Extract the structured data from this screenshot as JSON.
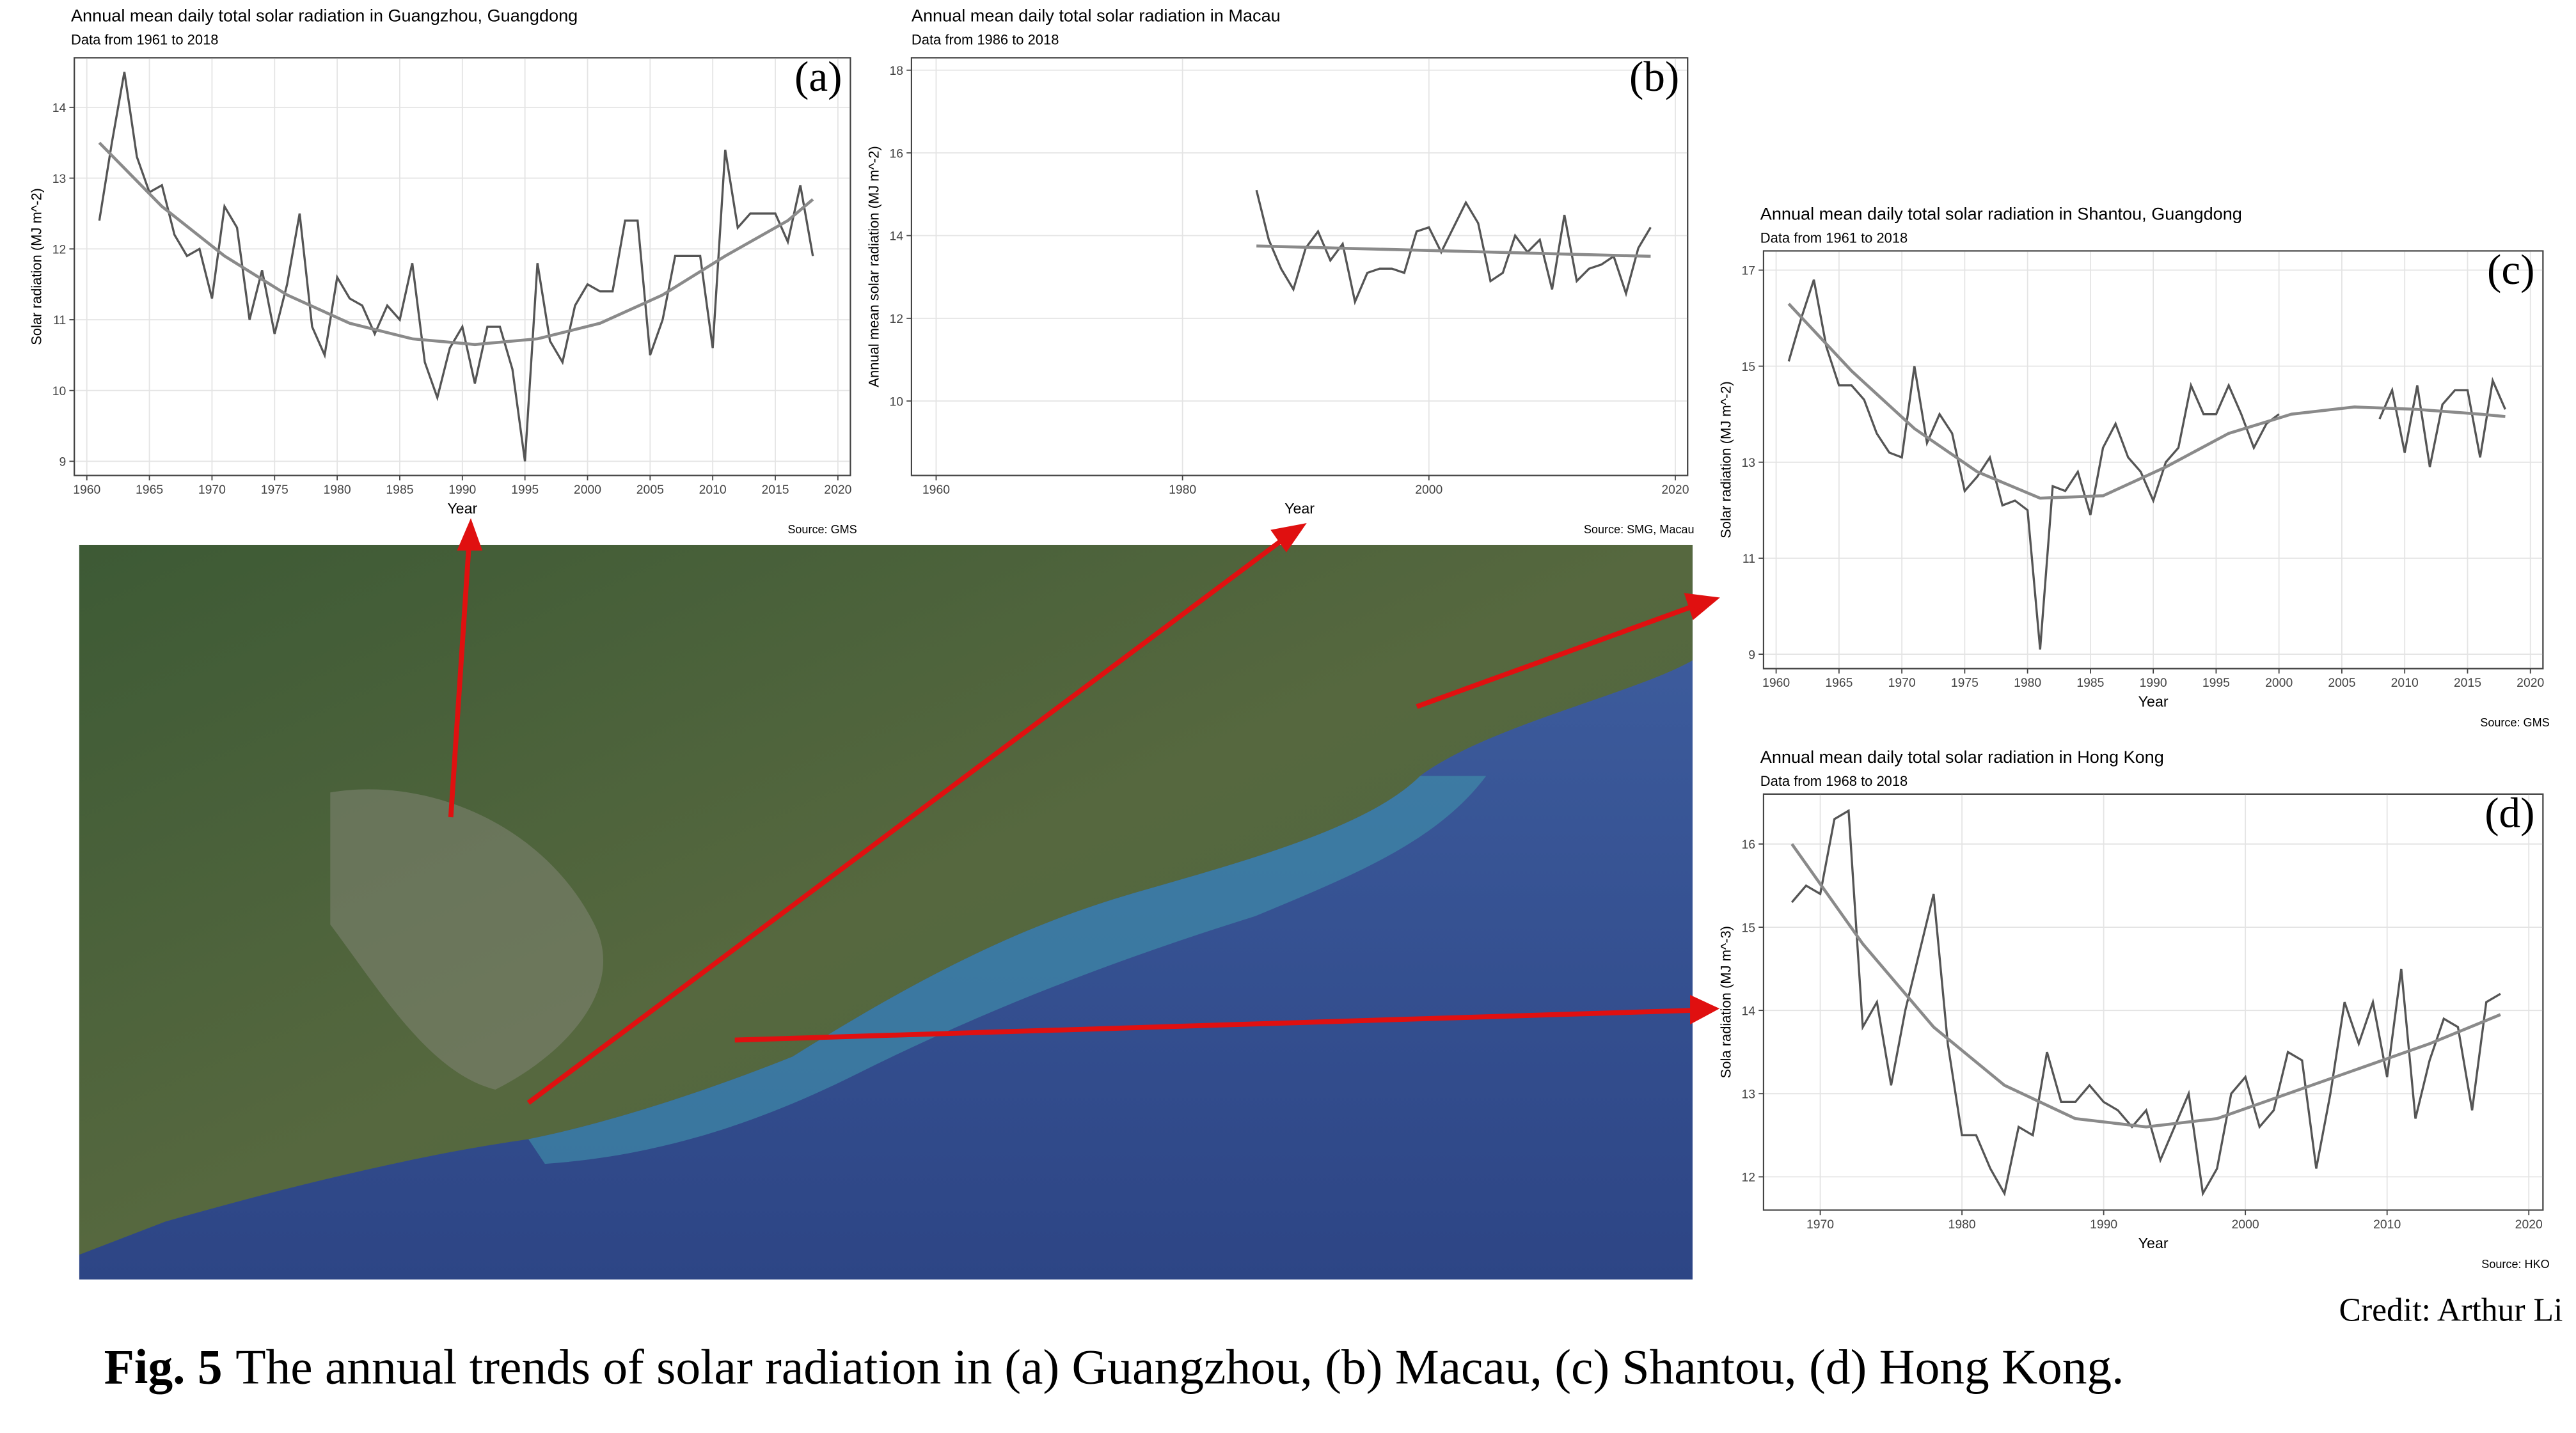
{
  "chart_data": [
    {
      "type": "line",
      "title": "Annual mean daily total solar radiation in Guangzhou, Guangdong",
      "subtitle": "Data from 1961 to 2018",
      "panel": "(a)",
      "xlabel": "Year",
      "ylabel": "Solar radiation (MJ m^-2)",
      "source": "Source: GMS",
      "xlim": [
        1959,
        2021
      ],
      "xticks": [
        1960,
        1965,
        1970,
        1975,
        1980,
        1985,
        1990,
        1995,
        2000,
        2005,
        2010,
        2015,
        2020
      ],
      "ylim": [
        8.8,
        14.7
      ],
      "yticks": [
        9,
        10,
        11,
        12,
        13,
        14
      ],
      "grid": true,
      "series": [
        {
          "color": "#555555",
          "x": [
            1961,
            1962,
            1963,
            1964,
            1965,
            1966,
            1967,
            1968,
            1969,
            1970,
            1971,
            1972,
            1973,
            1974,
            1975,
            1976,
            1977,
            1978,
            1979,
            1980,
            1981,
            1982,
            1983,
            1984,
            1985,
            1986,
            1987,
            1988,
            1989,
            1990,
            1991,
            1992,
            1993,
            1994,
            1995,
            1996,
            1997,
            1998,
            1999,
            2000,
            2001,
            2002,
            2003,
            2004,
            2005,
            2006,
            2007,
            2008,
            2009,
            2010,
            2011,
            2012,
            2013,
            2014,
            2015,
            2016,
            2017,
            2018
          ],
          "values": [
            12.4,
            13.5,
            14.5,
            13.3,
            12.8,
            12.9,
            12.2,
            11.9,
            12.0,
            11.3,
            12.6,
            12.3,
            11.0,
            11.7,
            10.8,
            11.5,
            12.5,
            10.9,
            10.5,
            11.6,
            11.3,
            11.2,
            10.8,
            11.2,
            11.0,
            11.8,
            10.4,
            9.9,
            10.6,
            10.9,
            10.1,
            10.9,
            10.9,
            10.3,
            9.0,
            11.8,
            10.7,
            10.4,
            11.2,
            11.5,
            11.4,
            11.4,
            12.4,
            12.4,
            10.5,
            11.0,
            11.9,
            11.9,
            11.9,
            10.6,
            13.4,
            12.3,
            12.5,
            12.5,
            12.5,
            12.1,
            12.9,
            11.9
          ]
        },
        {
          "color": "#8a8a8a",
          "x": [
            1961,
            1966,
            1971,
            1976,
            1981,
            1986,
            1991,
            1996,
            2001,
            2006,
            2011,
            2016,
            2018
          ],
          "values": [
            13.5,
            12.6,
            11.9,
            11.35,
            10.95,
            10.73,
            10.65,
            10.73,
            10.95,
            11.35,
            11.9,
            12.4,
            12.7
          ]
        }
      ]
    },
    {
      "type": "line",
      "title": "Annual mean daily total solar radiation in Macau",
      "subtitle": "Data from 1986 to 2018",
      "panel": "(b)",
      "xlabel": "Year",
      "ylabel": "Annual mean solar radiation (MJ m^-2)",
      "source": "Source: SMG, Macau",
      "xlim": [
        1958,
        2021
      ],
      "xticks": [
        1960,
        1980,
        2000,
        2020
      ],
      "ylim": [
        8.2,
        18.3
      ],
      "yticks": [
        10,
        12,
        14,
        16,
        18
      ],
      "grid": true,
      "series": [
        {
          "color": "#555555",
          "x": [
            1986,
            1987,
            1988,
            1989,
            1990,
            1991,
            1992,
            1993,
            1994,
            1995,
            1996,
            1997,
            1998,
            1999,
            2000,
            2001,
            2002,
            2003,
            2004,
            2005,
            2006,
            2007,
            2008,
            2009,
            2010,
            2011,
            2012,
            2013,
            2014,
            2015,
            2016,
            2017,
            2018
          ],
          "values": [
            15.1,
            13.9,
            13.2,
            12.7,
            13.7,
            14.1,
            13.4,
            13.8,
            12.4,
            13.1,
            13.2,
            13.2,
            13.1,
            14.1,
            14.2,
            13.6,
            14.2,
            14.8,
            14.3,
            12.9,
            13.1,
            14.0,
            13.6,
            13.9,
            12.7,
            14.5,
            12.9,
            13.2,
            13.3,
            13.5,
            12.6,
            13.7,
            14.2
          ]
        },
        {
          "color": "#8a8a8a",
          "x": [
            1986,
            2018
          ],
          "values": [
            13.75,
            13.5
          ]
        }
      ]
    },
    {
      "type": "line",
      "title": "Annual mean daily total solar radiation in Shantou, Guangdong",
      "subtitle": "Data from 1961 to 2018",
      "panel": "(c)",
      "xlabel": "Year",
      "ylabel": "Solar radiation (MJ m^-2)",
      "source": "Source: GMS",
      "xlim": [
        1959,
        2021
      ],
      "xticks": [
        1960,
        1965,
        1970,
        1975,
        1980,
        1985,
        1990,
        1995,
        2000,
        2005,
        2010,
        2015,
        2020
      ],
      "ylim": [
        8.7,
        17.4
      ],
      "yticks": [
        9,
        11,
        13,
        15,
        17
      ],
      "grid": true,
      "series": [
        {
          "color": "#555555",
          "x": [
            1961,
            1962,
            1963,
            1964,
            1965,
            1966,
            1967,
            1968,
            1969,
            1970,
            1971,
            1972,
            1973,
            1974,
            1975,
            1976,
            1977,
            1978,
            1979,
            1980,
            1981,
            1982,
            1983,
            1984,
            1985,
            1986,
            1987,
            1988,
            1989,
            1990,
            1991,
            1992,
            1993,
            1994,
            1995,
            1996,
            1997,
            1998,
            1999,
            2000,
            2001,
            2002,
            2003,
            2004,
            2005,
            2006,
            2007,
            2008,
            2009,
            2010,
            2011,
            2012,
            2013,
            2014,
            2015,
            2016,
            2017,
            2018
          ],
          "values": [
            15.1,
            16.0,
            16.8,
            15.4,
            14.6,
            14.6,
            14.3,
            13.6,
            13.2,
            13.1,
            15.0,
            13.4,
            14.0,
            13.6,
            12.4,
            12.7,
            13.1,
            12.1,
            12.2,
            12.0,
            9.1,
            12.5,
            12.4,
            12.8,
            11.9,
            13.3,
            13.8,
            13.1,
            12.8,
            12.2,
            13.0,
            13.3,
            14.6,
            14.0,
            14.0,
            14.6,
            14.0,
            13.3,
            13.8,
            14.0,
            null,
            null,
            null,
            null,
            null,
            null,
            null,
            13.9,
            14.5,
            13.2,
            14.6,
            12.9,
            14.2,
            14.5,
            14.5,
            13.1,
            14.7,
            14.1
          ]
        },
        {
          "color": "#8a8a8a",
          "x": [
            1961,
            1966,
            1971,
            1976,
            1981,
            1986,
            1991,
            1996,
            2001,
            2006,
            2011,
            2016,
            2018
          ],
          "values": [
            16.3,
            14.9,
            13.7,
            12.8,
            12.25,
            12.3,
            12.9,
            13.6,
            14.0,
            14.15,
            14.1,
            14.0,
            13.95
          ]
        }
      ]
    },
    {
      "type": "line",
      "title": "Annual mean daily total solar radiation in Hong Kong",
      "subtitle": "Data from 1968 to 2018",
      "panel": "(d)",
      "xlabel": "Year",
      "ylabel": "Sola radiation (MJ m^-3)",
      "source": "Source: HKO",
      "xlim": [
        1966,
        2021
      ],
      "xticks": [
        1970,
        1980,
        1990,
        2000,
        2010,
        2020
      ],
      "ylim": [
        11.6,
        16.6
      ],
      "yticks": [
        12,
        13,
        14,
        15,
        16
      ],
      "grid": true,
      "series": [
        {
          "color": "#555555",
          "x": [
            1968,
            1969,
            1970,
            1971,
            1972,
            1973,
            1974,
            1975,
            1976,
            1977,
            1978,
            1979,
            1980,
            1981,
            1982,
            1983,
            1984,
            1985,
            1986,
            1987,
            1988,
            1989,
            1990,
            1991,
            1992,
            1993,
            1994,
            1995,
            1996,
            1997,
            1998,
            1999,
            2000,
            2001,
            2002,
            2003,
            2004,
            2005,
            2006,
            2007,
            2008,
            2009,
            2010,
            2011,
            2012,
            2013,
            2014,
            2015,
            2016,
            2017,
            2018
          ],
          "values": [
            15.3,
            15.5,
            15.4,
            16.3,
            16.4,
            13.8,
            14.1,
            13.1,
            14.0,
            14.7,
            15.4,
            13.6,
            12.5,
            12.5,
            12.1,
            11.8,
            12.6,
            12.5,
            13.5,
            12.9,
            12.9,
            13.1,
            12.9,
            12.8,
            12.6,
            12.8,
            12.2,
            12.6,
            13.0,
            11.8,
            12.1,
            13.0,
            13.2,
            12.6,
            12.8,
            13.5,
            13.4,
            12.1,
            13.0,
            14.1,
            13.6,
            14.1,
            13.2,
            14.5,
            12.7,
            13.4,
            13.9,
            13.8,
            12.8,
            14.1,
            14.2
          ]
        },
        {
          "color": "#8a8a8a",
          "x": [
            1968,
            1973,
            1978,
            1983,
            1988,
            1993,
            1998,
            2003,
            2008,
            2013,
            2018
          ],
          "values": [
            16.0,
            14.8,
            13.8,
            13.1,
            12.7,
            12.6,
            12.7,
            13.0,
            13.3,
            13.6,
            13.95
          ]
        }
      ]
    }
  ],
  "credit": "Credit: Arthur Li",
  "caption": {
    "label": "Fig. 5",
    "text": "The annual trends of solar radiation in (a) Guangzhou, (b) Macau, (c) Shantou, (d) Hong Kong."
  }
}
